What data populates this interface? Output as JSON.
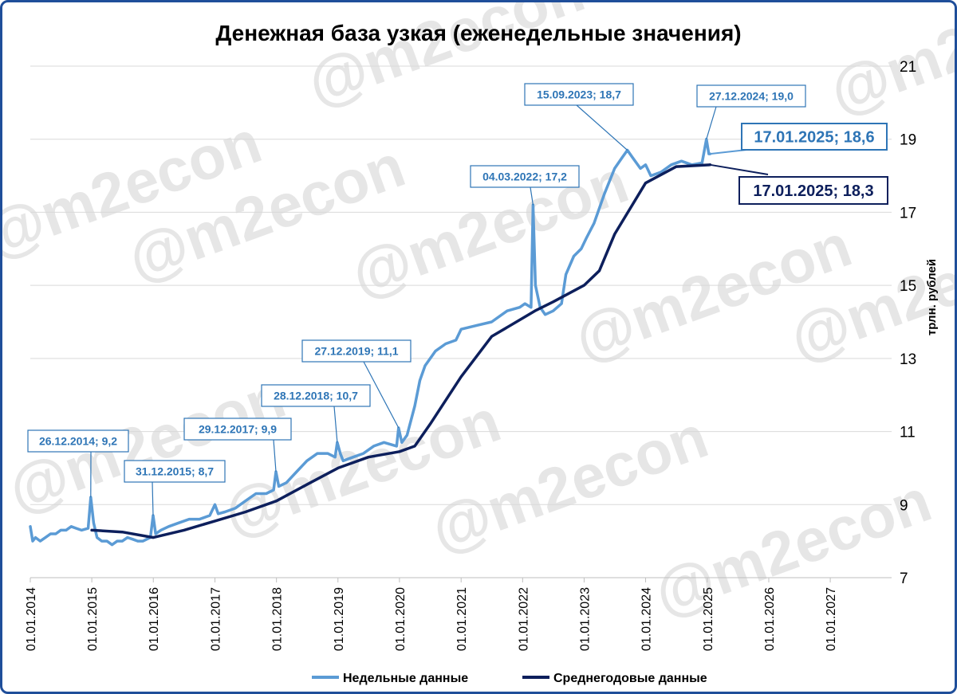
{
  "chart_data": {
    "type": "line",
    "title": "Денежная база узкая (еженедельные значения)",
    "ylabel": "трлн. рублей",
    "ylim": [
      7,
      21
    ],
    "yticks": [
      7,
      9,
      11,
      13,
      15,
      17,
      19,
      21
    ],
    "xlim": [
      "2014-01-01",
      "2027-12-31"
    ],
    "xticks": [
      "01.01.2014",
      "01.01.2015",
      "01.01.2016",
      "01.01.2017",
      "01.01.2018",
      "01.01.2019",
      "01.01.2020",
      "01.01.2021",
      "01.01.2022",
      "01.01.2023",
      "01.01.2024",
      "01.01.2025",
      "01.01.2026",
      "01.01.2027"
    ],
    "grid": true,
    "legend_position": "bottom",
    "watermark": "@m2econ",
    "colors": {
      "weekly": "#5b9bd5",
      "annual": "#0d1f5c",
      "frame": "#1f4e9a",
      "annotation_weekly": "#2e75b6"
    },
    "series": [
      {
        "name": "Недельные данные",
        "points": [
          [
            "2014-01-01",
            8.4
          ],
          [
            "2014-01-15",
            8.0
          ],
          [
            "2014-02-01",
            8.1
          ],
          [
            "2014-03-01",
            8.0
          ],
          [
            "2014-04-01",
            8.1
          ],
          [
            "2014-05-01",
            8.2
          ],
          [
            "2014-06-01",
            8.2
          ],
          [
            "2014-07-01",
            8.3
          ],
          [
            "2014-08-01",
            8.3
          ],
          [
            "2014-09-01",
            8.4
          ],
          [
            "2014-10-01",
            8.35
          ],
          [
            "2014-11-01",
            8.3
          ],
          [
            "2014-12-10",
            8.35
          ],
          [
            "2014-12-26",
            9.2
          ],
          [
            "2015-01-12",
            8.5
          ],
          [
            "2015-02-01",
            8.1
          ],
          [
            "2015-03-01",
            8.0
          ],
          [
            "2015-04-01",
            8.0
          ],
          [
            "2015-05-01",
            7.9
          ],
          [
            "2015-06-01",
            8.0
          ],
          [
            "2015-07-01",
            8.0
          ],
          [
            "2015-08-01",
            8.1
          ],
          [
            "2015-09-01",
            8.05
          ],
          [
            "2015-10-01",
            8.0
          ],
          [
            "2015-11-01",
            8.0
          ],
          [
            "2015-12-15",
            8.1
          ],
          [
            "2015-12-31",
            8.7
          ],
          [
            "2016-01-15",
            8.2
          ],
          [
            "2016-02-15",
            8.3
          ],
          [
            "2016-04-01",
            8.4
          ],
          [
            "2016-06-01",
            8.5
          ],
          [
            "2016-08-01",
            8.6
          ],
          [
            "2016-10-01",
            8.6
          ],
          [
            "2016-12-01",
            8.7
          ],
          [
            "2017-01-01",
            9.0
          ],
          [
            "2017-01-20",
            8.75
          ],
          [
            "2017-03-01",
            8.8
          ],
          [
            "2017-05-01",
            8.9
          ],
          [
            "2017-07-01",
            9.1
          ],
          [
            "2017-09-01",
            9.3
          ],
          [
            "2017-11-01",
            9.3
          ],
          [
            "2017-12-15",
            9.4
          ],
          [
            "2017-12-29",
            9.9
          ],
          [
            "2018-01-15",
            9.5
          ],
          [
            "2018-03-01",
            9.6
          ],
          [
            "2018-05-01",
            9.9
          ],
          [
            "2018-07-01",
            10.2
          ],
          [
            "2018-09-01",
            10.4
          ],
          [
            "2018-11-01",
            10.4
          ],
          [
            "2018-12-15",
            10.3
          ],
          [
            "2018-12-28",
            10.7
          ],
          [
            "2019-01-15",
            10.4
          ],
          [
            "2019-02-01",
            10.2
          ],
          [
            "2019-04-01",
            10.3
          ],
          [
            "2019-06-01",
            10.4
          ],
          [
            "2019-08-01",
            10.6
          ],
          [
            "2019-10-01",
            10.7
          ],
          [
            "2019-12-15",
            10.6
          ],
          [
            "2019-12-27",
            11.1
          ],
          [
            "2020-01-15",
            10.7
          ],
          [
            "2020-02-15",
            10.9
          ],
          [
            "2020-04-01",
            11.7
          ],
          [
            "2020-05-01",
            12.4
          ],
          [
            "2020-06-01",
            12.8
          ],
          [
            "2020-08-01",
            13.2
          ],
          [
            "2020-10-01",
            13.4
          ],
          [
            "2020-12-01",
            13.5
          ],
          [
            "2021-01-01",
            13.8
          ],
          [
            "2021-04-01",
            13.9
          ],
          [
            "2021-07-01",
            14.0
          ],
          [
            "2021-10-01",
            14.3
          ],
          [
            "2021-12-15",
            14.4
          ],
          [
            "2022-01-15",
            14.5
          ],
          [
            "2022-02-20",
            14.4
          ],
          [
            "2022-03-04",
            17.2
          ],
          [
            "2022-03-18",
            15.0
          ],
          [
            "2022-04-15",
            14.4
          ],
          [
            "2022-05-15",
            14.2
          ],
          [
            "2022-07-01",
            14.3
          ],
          [
            "2022-08-20",
            14.5
          ],
          [
            "2022-09-15",
            15.3
          ],
          [
            "2022-11-01",
            15.8
          ],
          [
            "2022-12-15",
            16.0
          ],
          [
            "2023-01-15",
            16.3
          ],
          [
            "2023-03-01",
            16.7
          ],
          [
            "2023-05-01",
            17.5
          ],
          [
            "2023-07-01",
            18.2
          ],
          [
            "2023-08-15",
            18.5
          ],
          [
            "2023-09-15",
            18.7
          ],
          [
            "2023-10-15",
            18.5
          ],
          [
            "2023-12-01",
            18.2
          ],
          [
            "2024-01-01",
            18.3
          ],
          [
            "2024-02-01",
            18.0
          ],
          [
            "2024-04-01",
            18.1
          ],
          [
            "2024-06-01",
            18.3
          ],
          [
            "2024-08-01",
            18.4
          ],
          [
            "2024-10-01",
            18.3
          ],
          [
            "2024-12-01",
            18.35
          ],
          [
            "2024-12-27",
            19.0
          ],
          [
            "2025-01-10",
            18.6
          ],
          [
            "2025-01-17",
            18.6
          ]
        ]
      },
      {
        "name": "Среднегодовые данные",
        "points": [
          [
            "2015-01-01",
            8.3
          ],
          [
            "2015-07-01",
            8.25
          ],
          [
            "2016-01-01",
            8.1
          ],
          [
            "2016-07-01",
            8.3
          ],
          [
            "2017-01-01",
            8.55
          ],
          [
            "2017-07-01",
            8.8
          ],
          [
            "2018-01-01",
            9.1
          ],
          [
            "2018-07-01",
            9.55
          ],
          [
            "2019-01-01",
            10.0
          ],
          [
            "2019-07-01",
            10.3
          ],
          [
            "2020-01-01",
            10.45
          ],
          [
            "2020-04-01",
            10.6
          ],
          [
            "2020-07-01",
            11.2
          ],
          [
            "2021-01-01",
            12.5
          ],
          [
            "2021-07-01",
            13.6
          ],
          [
            "2022-01-01",
            14.1
          ],
          [
            "2022-03-15",
            14.3
          ],
          [
            "2022-07-01",
            14.55
          ],
          [
            "2023-01-01",
            15.0
          ],
          [
            "2023-04-01",
            15.4
          ],
          [
            "2023-07-01",
            16.4
          ],
          [
            "2024-01-01",
            17.8
          ],
          [
            "2024-07-01",
            18.25
          ],
          [
            "2025-01-17",
            18.3
          ]
        ]
      }
    ],
    "annotations": [
      {
        "text": "26.12.2014;  9,2",
        "x": "2014-12-26",
        "y": 9.2,
        "style": "weekly"
      },
      {
        "text": "31.12.2015;  8,7",
        "x": "2015-12-31",
        "y": 8.7,
        "style": "weekly"
      },
      {
        "text": "29.12.2017;  9,9",
        "x": "2017-12-29",
        "y": 9.9,
        "style": "weekly"
      },
      {
        "text": "28.12.2018;  10,7",
        "x": "2018-12-28",
        "y": 10.7,
        "style": "weekly"
      },
      {
        "text": "27.12.2019;  11,1",
        "x": "2019-12-27",
        "y": 11.1,
        "style": "weekly"
      },
      {
        "text": "04.03.2022;  17,2",
        "x": "2022-03-04",
        "y": 17.2,
        "style": "weekly"
      },
      {
        "text": "15.09.2023;  18,7",
        "x": "2023-09-15",
        "y": 18.7,
        "style": "weekly"
      },
      {
        "text": "27.12.2024;  19,0",
        "x": "2024-12-27",
        "y": 19.0,
        "style": "weekly"
      },
      {
        "text": "17.01.2025;  18,6",
        "x": "2025-01-17",
        "y": 18.6,
        "style": "weekly-large"
      },
      {
        "text": "17.01.2025;  18,3",
        "x": "2025-01-17",
        "y": 18.3,
        "style": "annual-large"
      }
    ]
  }
}
